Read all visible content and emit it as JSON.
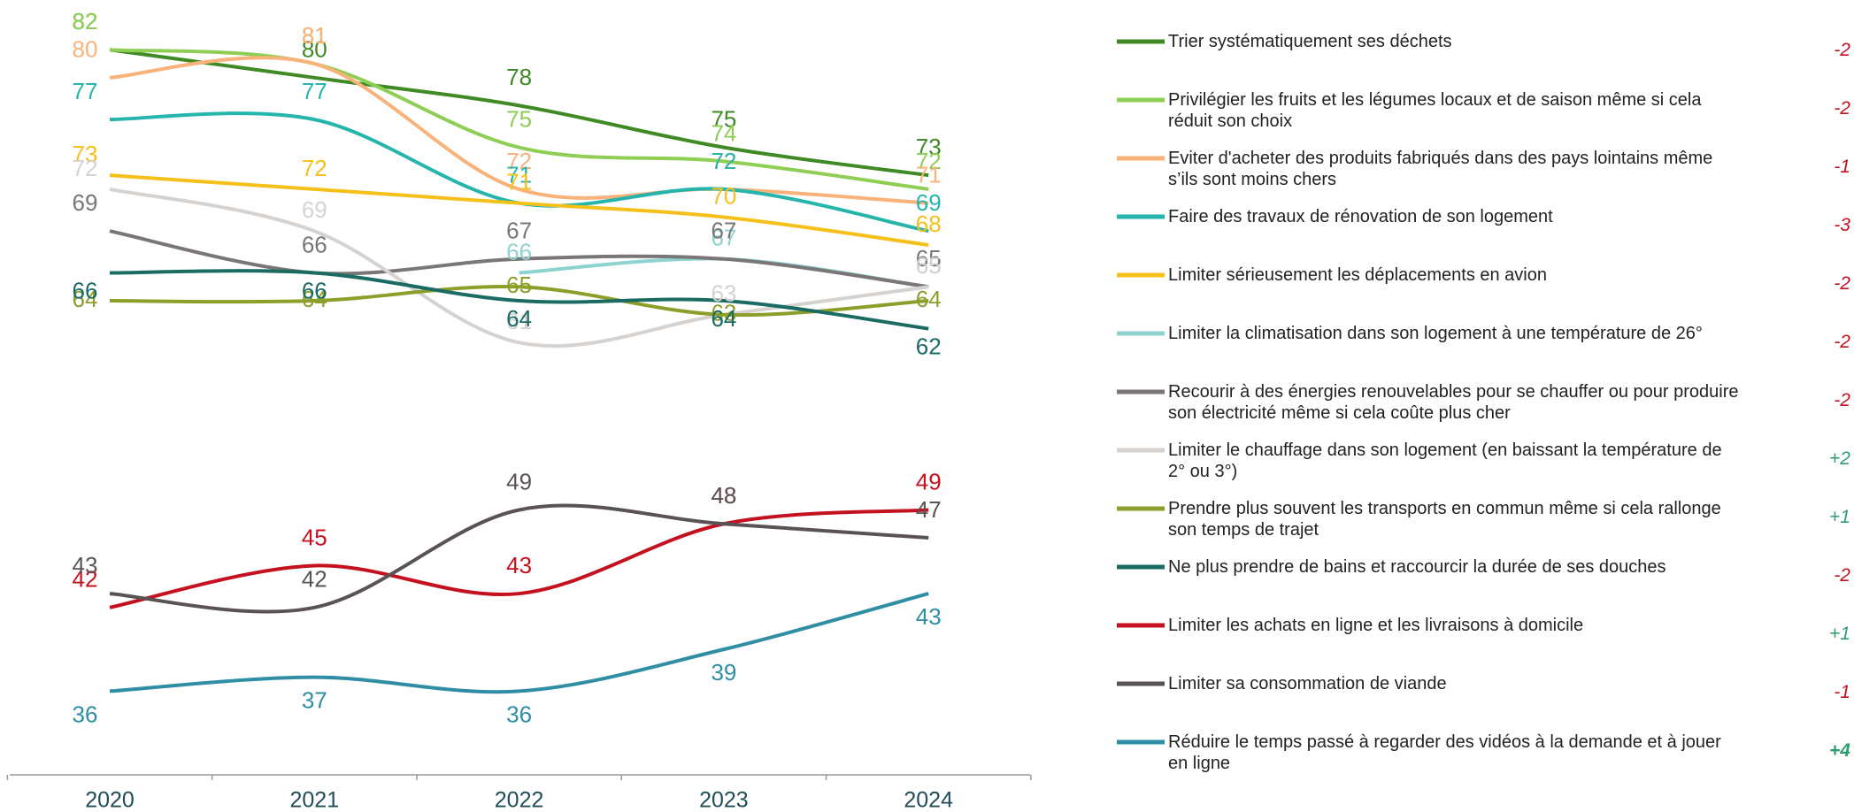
{
  "chart_data": {
    "type": "line",
    "categories": [
      "2020",
      "2021",
      "2022",
      "2023",
      "2024"
    ],
    "ylim": [
      30,
      85
    ],
    "series": [
      {
        "name": "Trier systématiquement ses déchets",
        "color": "#3f8a24",
        "values": [
          82,
          80,
          78,
          75,
          73
        ]
      },
      {
        "name": "Privilégier les fruits et les légumes locaux et de saison même si cela réduit son choix",
        "color": "#8fce55",
        "values": [
          82,
          81,
          75,
          74,
          72
        ]
      },
      {
        "name": "Eviter d'acheter des produits fabriqués dans des pays lointains même s’ils sont moins chers",
        "color": "#f9b27a",
        "values": [
          80,
          81,
          72,
          72,
          71
        ]
      },
      {
        "name": "Faire des travaux de rénovation de son logement",
        "color": "#25b5ad",
        "values": [
          77,
          77,
          71,
          72,
          69
        ]
      },
      {
        "name": "Limiter sérieusement les déplacements en avion",
        "color": "#f5c01a",
        "values": [
          73,
          72,
          71,
          70,
          68
        ]
      },
      {
        "name": "Limiter la climatisation dans son logement à une température de 26°",
        "color": "#8fd3d0",
        "values": [
          null,
          null,
          66,
          67,
          65
        ]
      },
      {
        "name": "Recourir à des énergies renouvelables pour se chauffer ou pour produire son électricité même si cela coûte plus cher",
        "color": "#7a7576",
        "values": [
          69,
          66,
          67,
          67,
          65
        ]
      },
      {
        "name": "Limiter le chauffage dans son logement (en baissant la température de 2° ou 3°)",
        "color": "#d6d2cf",
        "values": [
          72,
          69,
          61,
          63,
          65
        ]
      },
      {
        "name": "Prendre plus souvent les transports en commun même si cela rallonge son temps de trajet",
        "color": "#8e9e2a",
        "values": [
          64,
          64,
          65,
          63,
          64
        ]
      },
      {
        "name": "Ne plus prendre de bains et raccourcir la durée de ses douches",
        "color": "#1a6b63",
        "values": [
          66,
          66,
          64,
          64,
          62
        ]
      },
      {
        "name": "Limiter les achats en ligne et les livraisons à domicile",
        "color": "#c4101f",
        "values": [
          42,
          45,
          43,
          48,
          49
        ]
      },
      {
        "name": "Limiter sa consommation de viande",
        "color": "#5a5354",
        "values": [
          43,
          42,
          49,
          48,
          47
        ]
      },
      {
        "name": "Réduire le temps passé à regarder des vidéos à la demande et à jouer en ligne",
        "color": "#2f8ea3",
        "values": [
          36,
          37,
          36,
          39,
          43
        ]
      }
    ],
    "changes": [
      -2,
      -2,
      -1,
      -3,
      -2,
      -2,
      -2,
      2,
      1,
      -2,
      1,
      -1,
      4
    ],
    "change_labels": [
      "-2",
      "-2",
      "-1",
      "-3",
      "-2",
      "-2",
      "-2",
      "+2",
      "+1",
      "-2",
      "+1",
      "-1",
      "+4"
    ]
  }
}
